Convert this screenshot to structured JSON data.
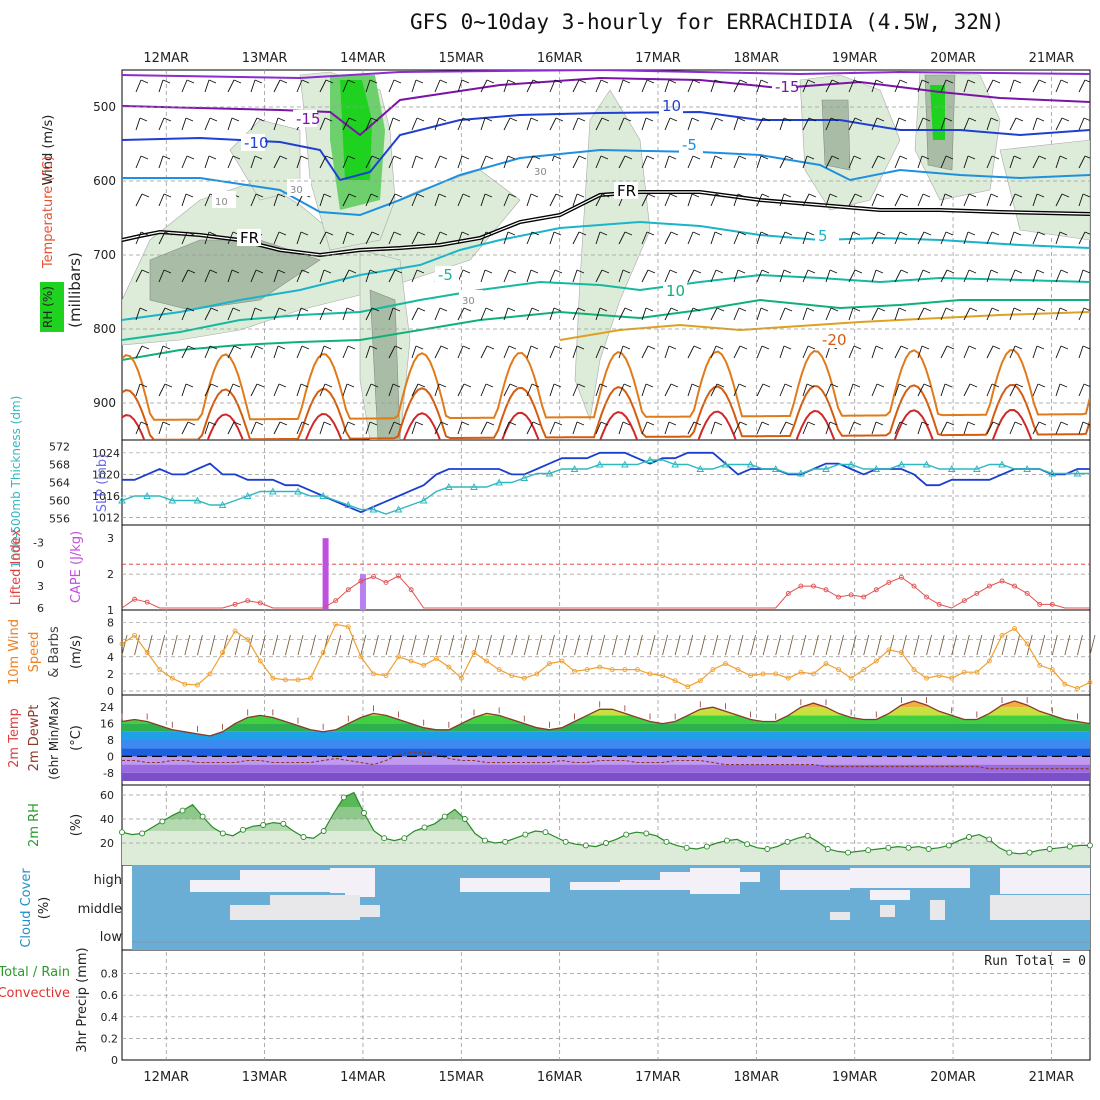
{
  "title": "GFS 0~10day 3-hourly for ERRACHIDIA (4.5W, 32N)",
  "dates": [
    "12MAR",
    "13MAR",
    "14MAR",
    "15MAR",
    "16MAR",
    "17MAR",
    "18MAR",
    "19MAR",
    "20MAR",
    "21MAR"
  ],
  "chart_data": [
    {
      "type": "heatmap",
      "name": "upper-air cross section",
      "ylabel_parts": [
        "Wind (m/s)",
        "Temperature (°C)",
        "RH (%)",
        "(millibars)"
      ],
      "yticks": [
        500,
        600,
        700,
        800,
        900
      ],
      "ylim": [
        950,
        450
      ],
      "contour_labels": [
        "-15",
        "-15",
        "-10",
        "-5",
        "10",
        "FR",
        "FR",
        "5",
        "-5",
        "10",
        "-20",
        "30",
        "30",
        "10",
        "30"
      ]
    },
    {
      "type": "line",
      "name": "SLP and 1000-500mb thickness",
      "ylabel_left": "1000-500mb Thickness (dm)",
      "ylabel_right": "SLP (mb)",
      "left_ticks": [
        556,
        560,
        564,
        568,
        572
      ],
      "right_ticks": [
        1012,
        1016,
        1020,
        1024
      ],
      "series": [
        {
          "name": "SLP",
          "color": "#1a3fd0",
          "values": [
            1019,
            1019,
            1020,
            1021,
            1020,
            1020,
            1021,
            1022,
            1020,
            1020,
            1019,
            1019,
            1019,
            1018,
            1018,
            1017,
            1016,
            1015,
            1014,
            1013,
            1014,
            1015,
            1016,
            1017,
            1018,
            1020,
            1021,
            1021,
            1021,
            1021,
            1021,
            1020,
            1020,
            1021,
            1022,
            1023,
            1023,
            1023,
            1024,
            1024,
            1024,
            1023,
            1022,
            1023,
            1023,
            1024,
            1024,
            1024,
            1022,
            1020,
            1021,
            1021,
            1021,
            1020,
            1020,
            1021,
            1022,
            1022,
            1021,
            1020,
            1021,
            1021,
            1021,
            1020,
            1018,
            1018,
            1019,
            1019,
            1019,
            1019,
            1020,
            1021,
            1021,
            1021,
            1020,
            1020,
            1021,
            1021
          ]
        },
        {
          "name": "Thickness",
          "color": "#30b8c0",
          "values": [
            560,
            561,
            561,
            561,
            560,
            560,
            560,
            559,
            559,
            560,
            561,
            562,
            562,
            562,
            562,
            561,
            561,
            560,
            559,
            558,
            558,
            557,
            558,
            559,
            560,
            562,
            563,
            563,
            563,
            563,
            564,
            564,
            565,
            566,
            566,
            567,
            567,
            567,
            568,
            568,
            568,
            568,
            569,
            569,
            568,
            568,
            567,
            567,
            568,
            568,
            568,
            567,
            567,
            566,
            566,
            567,
            567,
            568,
            568,
            567,
            567,
            567,
            568,
            568,
            568,
            567,
            567,
            567,
            567,
            568,
            568,
            567,
            567,
            567,
            566,
            566,
            566,
            566
          ]
        }
      ]
    },
    {
      "type": "bar",
      "name": "Lifted Index and CAPE",
      "ylabel_left": "Lifted Index",
      "ylabel_right": "CAPE (J/kg)",
      "left_ticks": [
        "-3",
        "0",
        "3",
        "6"
      ],
      "right_ticks": [
        "1",
        "2",
        "3"
      ],
      "cape_bars": [
        {
          "day": 13.62,
          "value": 3.0
        },
        {
          "day": 14.0,
          "value": 2.0
        }
      ],
      "lifted_index": [
        6,
        4.8,
        5.2,
        6,
        6,
        6,
        6,
        6,
        6,
        5.5,
        5.0,
        5.3,
        6,
        6,
        6,
        6,
        6,
        5,
        3.5,
        2.3,
        1.7,
        2.5,
        1.6,
        3.5,
        6,
        6,
        6,
        6,
        6,
        6,
        6,
        6,
        6,
        6,
        6,
        6,
        6,
        6,
        6,
        6,
        6,
        6,
        6,
        6,
        6,
        6,
        6,
        6,
        6,
        6,
        6,
        6,
        6,
        4,
        3,
        3,
        3.5,
        4.5,
        4.2,
        4.5,
        3.5,
        2.5,
        1.8,
        3,
        4.5,
        5.5,
        6,
        5,
        4,
        3,
        2.3,
        3,
        4,
        5.5,
        5.5,
        6,
        6,
        6
      ]
    },
    {
      "type": "line",
      "name": "10m wind speed and barbs",
      "ylabel": "10m Wind Speed (m/s) & Barbs",
      "yticks": [
        0,
        2,
        4,
        6,
        8
      ],
      "ylim": [
        0,
        9
      ],
      "values": [
        5.5,
        6.5,
        4.5,
        2.5,
        1.5,
        0.8,
        0.7,
        2.0,
        4.5,
        7.0,
        6.0,
        3.5,
        1.5,
        1.3,
        1.3,
        1.5,
        4.5,
        7.8,
        7.5,
        4.0,
        2.0,
        1.8,
        4.0,
        3.5,
        3.0,
        3.8,
        2.8,
        1.5,
        4.5,
        3.5,
        2.5,
        1.8,
        1.5,
        2.0,
        3.2,
        3.5,
        2.3,
        2.5,
        2.8,
        2.5,
        2.5,
        2.5,
        2.0,
        1.8,
        1.2,
        0.5,
        1.2,
        2.5,
        3.2,
        2.5,
        1.8,
        2.0,
        2.0,
        1.5,
        2.2,
        2.0,
        3.2,
        2.5,
        1.5,
        2.5,
        3.5,
        4.8,
        4.5,
        2.5,
        1.5,
        1.8,
        1.5,
        2.2,
        2.2,
        3.5,
        6.5,
        7.3,
        5.5,
        3.0,
        2.5,
        0.8,
        0.3,
        1.0
      ]
    },
    {
      "type": "area",
      "name": "2m temperature and dewpoint",
      "ylabel": "2m Temp 2m DewPt (6hr Min/Max) (°C)",
      "yticks": [
        -8,
        0,
        8,
        16,
        24
      ],
      "ylim": [
        -12,
        28
      ],
      "series": [
        {
          "name": "2m Temp",
          "values": [
            17,
            18,
            17,
            15,
            13,
            12,
            11,
            10,
            12,
            16,
            19,
            20,
            19,
            17,
            15,
            13,
            12,
            13,
            16,
            19,
            21,
            20,
            18,
            16,
            14,
            13,
            13,
            16,
            19,
            21,
            20,
            18,
            16,
            14,
            13,
            14,
            17,
            20,
            23,
            23,
            21,
            19,
            17,
            16,
            17,
            20,
            23,
            24,
            22,
            20,
            18,
            17,
            17,
            20,
            24,
            26,
            24,
            21,
            19,
            18,
            18,
            21,
            25,
            27,
            25,
            22,
            20,
            18,
            18,
            21,
            25,
            27,
            25,
            22,
            20,
            18,
            17,
            16
          ]
        },
        {
          "name": "2m DewPt",
          "values": [
            -2,
            -2,
            -3,
            -3,
            -2,
            -2,
            -3,
            -3,
            -3,
            -3,
            -2,
            -2,
            -3,
            -3,
            -3,
            -3,
            -2,
            -1,
            -2,
            -3,
            -4,
            -2,
            1,
            2,
            2,
            1,
            -1,
            -2,
            -2,
            -3,
            -3,
            -3,
            -3,
            -3,
            -3,
            -2,
            -3,
            -3,
            -2,
            -2,
            -2,
            -3,
            -3,
            -3,
            -2,
            -2,
            -2,
            -3,
            -4,
            -4,
            -4,
            -4,
            -4,
            -4,
            -4,
            -4,
            -5,
            -5,
            -5,
            -5,
            -5,
            -5,
            -5,
            -5,
            -5,
            -5,
            -5,
            -5,
            -5,
            -6,
            -6,
            -6,
            -6,
            -6,
            -6,
            -6,
            -6,
            -6
          ]
        }
      ]
    },
    {
      "type": "area",
      "name": "2m relative humidity",
      "ylabel": "2m RH (%)",
      "yticks": [
        20,
        40,
        60
      ],
      "ylim": [
        5,
        65
      ],
      "values": [
        29,
        27,
        28,
        33,
        38,
        43,
        47,
        52,
        42,
        33,
        28,
        26,
        31,
        34,
        35,
        37,
        36,
        30,
        25,
        24,
        30,
        45,
        58,
        62,
        45,
        30,
        24,
        22,
        24,
        30,
        33,
        36,
        42,
        48,
        40,
        28,
        22,
        20,
        21,
        24,
        27,
        30,
        29,
        25,
        21,
        19,
        18,
        17,
        20,
        23,
        27,
        29,
        28,
        26,
        21,
        18,
        16,
        15,
        17,
        20,
        22,
        23,
        19,
        16,
        15,
        17,
        21,
        24,
        26,
        21,
        15,
        13,
        12,
        13,
        14,
        15,
        16,
        17,
        16,
        17,
        15,
        16,
        18,
        22,
        25,
        27,
        23,
        16,
        12,
        11,
        12,
        14,
        15,
        16,
        17,
        18,
        18
      ]
    },
    {
      "type": "heatmap",
      "name": "cloud cover",
      "ylabel": "Cloud Cover (%)",
      "rows": [
        "high",
        "middle",
        "low"
      ]
    },
    {
      "type": "bar",
      "name": "3hr precipitation",
      "ylabel": "3hr Precip (mm)",
      "legend": [
        "Total / Rain",
        "Convective"
      ],
      "yticks": [
        "0",
        "0.2",
        "0.4",
        "0.6",
        "0.8"
      ],
      "ylim": [
        0,
        1
      ],
      "values": [],
      "annotation": "Run Total = 0"
    }
  ]
}
